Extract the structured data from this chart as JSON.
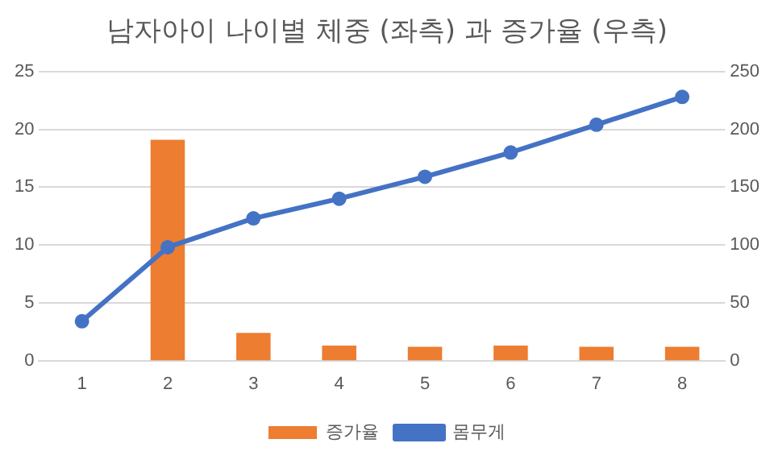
{
  "chart_data": {
    "type": "bar",
    "title": "남자아이 나이별 체중 (좌측) 과 증가율 (우측)",
    "categories": [
      "1",
      "2",
      "3",
      "4",
      "5",
      "6",
      "7",
      "8"
    ],
    "series": [
      {
        "name": "증가율",
        "type": "bar",
        "axis": "y2",
        "color": "#ed7d31",
        "values": [
          null,
          191,
          24,
          13,
          12,
          13,
          12,
          12
        ]
      },
      {
        "name": "몸무게",
        "type": "line",
        "axis": "y",
        "color": "#4472c4",
        "values": [
          3.4,
          9.8,
          12.3,
          14.0,
          15.9,
          18.0,
          20.4,
          22.8
        ]
      }
    ],
    "ylim": [
      0,
      25
    ],
    "yticks": [
      0,
      5,
      10,
      15,
      20,
      25
    ],
    "y2lim": [
      0,
      250
    ],
    "y2ticks": [
      0,
      50,
      100,
      150,
      200,
      250
    ],
    "grid": "y",
    "legend": "bottom",
    "marker": "circle",
    "line_style": "solid"
  }
}
